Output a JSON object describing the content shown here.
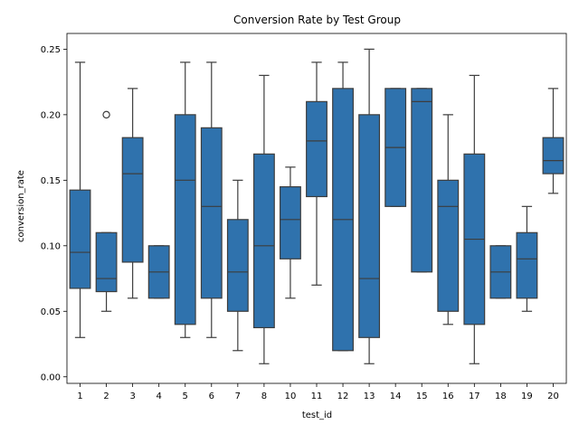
{
  "chart_data": {
    "type": "box",
    "title": "Conversion Rate by Test Group",
    "xlabel": "test_id",
    "ylabel": "conversion_rate",
    "ylim": [
      -0.005,
      0.262
    ],
    "yticks": [
      0.0,
      0.05,
      0.1,
      0.15,
      0.2,
      0.25
    ],
    "ytick_labels": [
      "0.00",
      "0.05",
      "0.10",
      "0.15",
      "0.20",
      "0.25"
    ],
    "grid": false,
    "color": "#2f72ad",
    "categories": [
      "1",
      "2",
      "3",
      "4",
      "5",
      "6",
      "7",
      "8",
      "10",
      "11",
      "12",
      "13",
      "14",
      "15",
      "16",
      "17",
      "18",
      "19",
      "20"
    ],
    "boxes": [
      {
        "label": "1",
        "whislo": 0.03,
        "q1": 0.0675,
        "med": 0.095,
        "q3": 0.1425,
        "whishi": 0.24,
        "fliers": []
      },
      {
        "label": "2",
        "whislo": 0.05,
        "q1": 0.065,
        "med": 0.075,
        "q3": 0.11,
        "whishi": 0.11,
        "fliers": [
          0.2
        ]
      },
      {
        "label": "3",
        "whislo": 0.06,
        "q1": 0.0875,
        "med": 0.155,
        "q3": 0.1825,
        "whishi": 0.22,
        "fliers": []
      },
      {
        "label": "4",
        "whislo": 0.06,
        "q1": 0.06,
        "med": 0.08,
        "q3": 0.1,
        "whishi": 0.1,
        "fliers": []
      },
      {
        "label": "5",
        "whislo": 0.03,
        "q1": 0.04,
        "med": 0.15,
        "q3": 0.2,
        "whishi": 0.24,
        "fliers": []
      },
      {
        "label": "6",
        "whislo": 0.03,
        "q1": 0.06,
        "med": 0.13,
        "q3": 0.19,
        "whishi": 0.24,
        "fliers": []
      },
      {
        "label": "7",
        "whislo": 0.02,
        "q1": 0.05,
        "med": 0.08,
        "q3": 0.12,
        "whishi": 0.15,
        "fliers": []
      },
      {
        "label": "8",
        "whislo": 0.01,
        "q1": 0.0375,
        "med": 0.1,
        "q3": 0.17,
        "whishi": 0.23,
        "fliers": []
      },
      {
        "label": "10",
        "whislo": 0.06,
        "q1": 0.09,
        "med": 0.12,
        "q3": 0.145,
        "whishi": 0.16,
        "fliers": []
      },
      {
        "label": "11",
        "whislo": 0.07,
        "q1": 0.1375,
        "med": 0.18,
        "q3": 0.21,
        "whishi": 0.24,
        "fliers": []
      },
      {
        "label": "12",
        "whislo": 0.02,
        "q1": 0.02,
        "med": 0.12,
        "q3": 0.22,
        "whishi": 0.24,
        "fliers": []
      },
      {
        "label": "13",
        "whislo": 0.01,
        "q1": 0.03,
        "med": 0.075,
        "q3": 0.2,
        "whishi": 0.25,
        "fliers": []
      },
      {
        "label": "14",
        "whislo": 0.13,
        "q1": 0.13,
        "med": 0.175,
        "q3": 0.22,
        "whishi": 0.22,
        "fliers": []
      },
      {
        "label": "15",
        "whislo": 0.08,
        "q1": 0.08,
        "med": 0.21,
        "q3": 0.22,
        "whishi": 0.22,
        "fliers": []
      },
      {
        "label": "16",
        "whislo": 0.04,
        "q1": 0.05,
        "med": 0.13,
        "q3": 0.15,
        "whishi": 0.2,
        "fliers": []
      },
      {
        "label": "17",
        "whislo": 0.01,
        "q1": 0.04,
        "med": 0.105,
        "q3": 0.17,
        "whishi": 0.23,
        "fliers": []
      },
      {
        "label": "18",
        "whislo": 0.06,
        "q1": 0.06,
        "med": 0.08,
        "q3": 0.1,
        "whishi": 0.1,
        "fliers": []
      },
      {
        "label": "19",
        "whislo": 0.05,
        "q1": 0.06,
        "med": 0.09,
        "q3": 0.11,
        "whishi": 0.13,
        "fliers": []
      },
      {
        "label": "20",
        "whislo": 0.14,
        "q1": 0.155,
        "med": 0.165,
        "q3": 0.1825,
        "whishi": 0.22,
        "fliers": []
      }
    ]
  }
}
